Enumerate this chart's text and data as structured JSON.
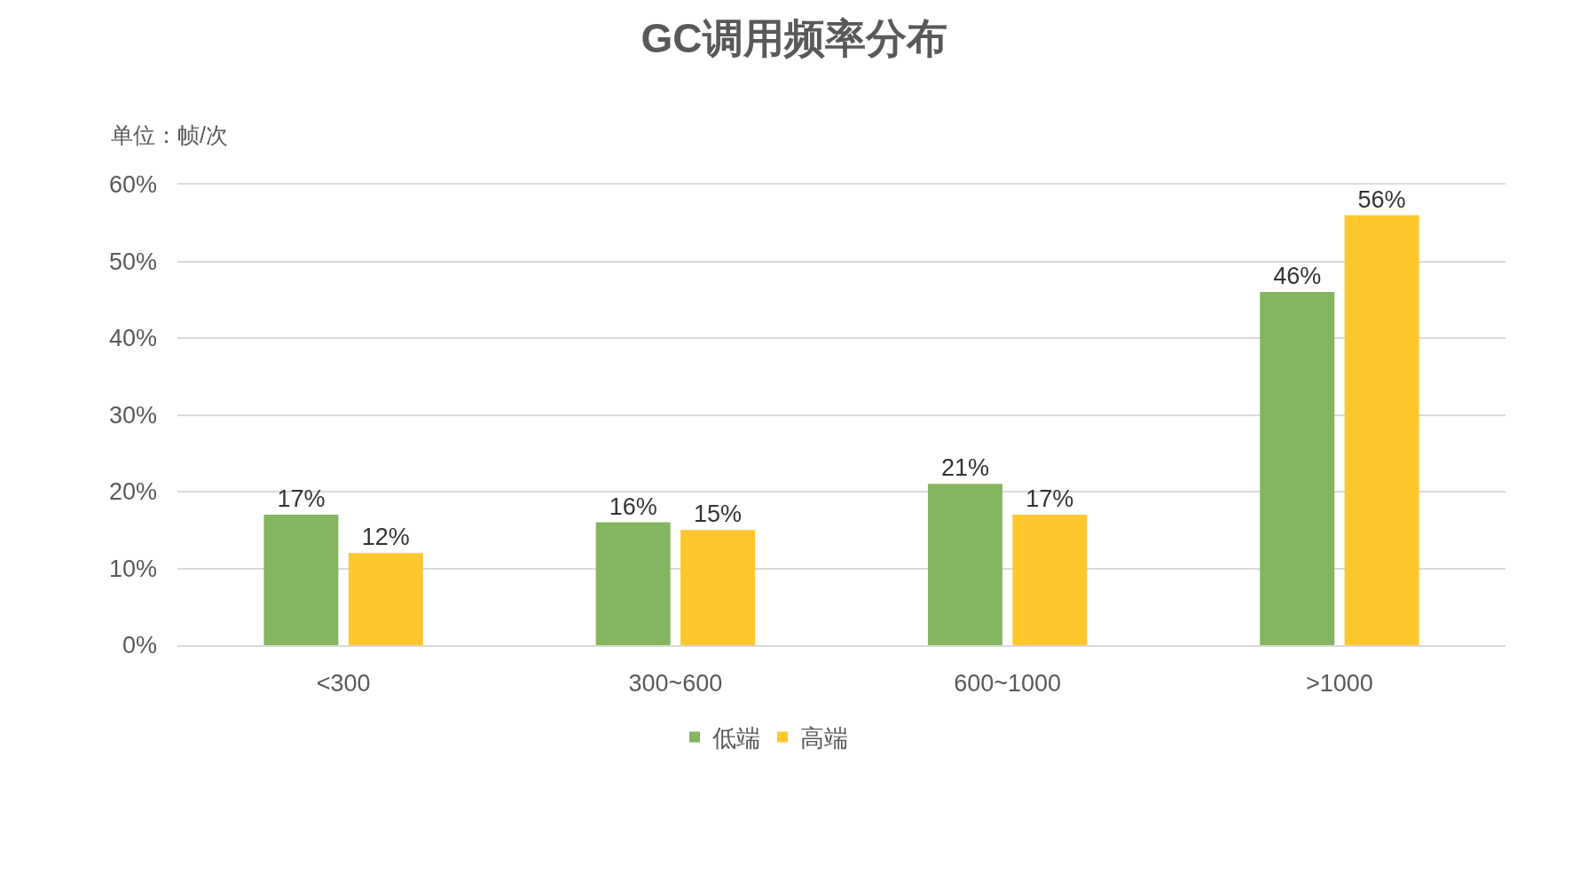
{
  "chart_data": {
    "type": "bar",
    "title": "GC调用频率分布",
    "ylabel": "单位：帧/次",
    "categories": [
      "<300",
      "300~600",
      "600~1000",
      ">1000"
    ],
    "series": [
      {
        "name": "低端",
        "color": "#84b65f",
        "values": [
          17,
          16,
          21,
          46
        ],
        "value_labels": [
          "17%",
          "16%",
          "21%",
          "46%"
        ]
      },
      {
        "name": "高端",
        "color": "#fec72e",
        "values": [
          12,
          15,
          17,
          56
        ],
        "value_labels": [
          "12%",
          "15%",
          "17%",
          "56%"
        ]
      }
    ],
    "ylim": [
      0,
      60
    ],
    "yticks": [
      {
        "value": 0,
        "label": "0%"
      },
      {
        "value": 10,
        "label": "10%"
      },
      {
        "value": 20,
        "label": "20%"
      },
      {
        "value": 30,
        "label": "30%"
      },
      {
        "value": 40,
        "label": "40%"
      },
      {
        "value": 50,
        "label": "50%"
      },
      {
        "value": 60,
        "label": "60%"
      }
    ],
    "grid": "y",
    "legend": "bottom"
  }
}
